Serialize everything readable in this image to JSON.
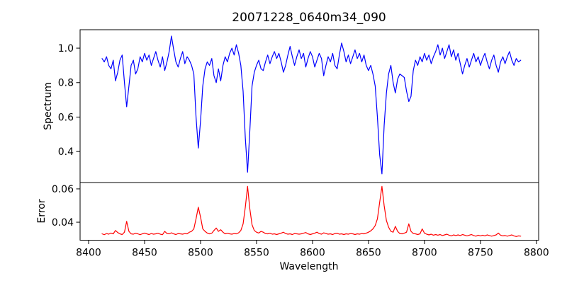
{
  "title": "20071228_0640m34_090",
  "figure": {
    "background": "#ffffff",
    "axis_color": "#000000"
  },
  "chart_data": [
    {
      "type": "line",
      "name": "spectrum-panel",
      "title": "20071228_0640m34_090",
      "xlabel": "",
      "ylabel": "Spectrum",
      "xlim": [
        8392.4,
        8802.0
      ],
      "ylim": [
        0.22,
        1.107
      ],
      "yticks": [
        0.4,
        0.6,
        0.8,
        1.0
      ],
      "yticklabels": [
        "0.4",
        "0.6",
        "0.8",
        "1.0"
      ],
      "grid": false,
      "legend": "none",
      "series": [
        {
          "name": "spectrum",
          "color": "#0000ff",
          "x_start": 8412,
          "x_step": 2,
          "values": [
            0.94,
            0.92,
            0.95,
            0.9,
            0.88,
            0.93,
            0.81,
            0.86,
            0.93,
            0.96,
            0.8,
            0.66,
            0.78,
            0.9,
            0.93,
            0.85,
            0.88,
            0.95,
            0.92,
            0.97,
            0.93,
            0.96,
            0.9,
            0.94,
            0.98,
            0.93,
            0.89,
            0.95,
            0.87,
            0.92,
            0.98,
            1.07,
            0.99,
            0.92,
            0.89,
            0.94,
            0.98,
            0.91,
            0.95,
            0.93,
            0.9,
            0.85,
            0.6,
            0.42,
            0.58,
            0.78,
            0.88,
            0.92,
            0.9,
            0.94,
            0.84,
            0.8,
            0.88,
            0.81,
            0.9,
            0.95,
            0.92,
            0.97,
            1.0,
            0.96,
            1.02,
            0.97,
            0.9,
            0.75,
            0.48,
            0.28,
            0.52,
            0.78,
            0.86,
            0.9,
            0.93,
            0.88,
            0.87,
            0.92,
            0.96,
            0.91,
            0.95,
            0.98,
            0.94,
            0.97,
            0.92,
            0.86,
            0.9,
            0.96,
            1.01,
            0.95,
            0.9,
            0.95,
            0.99,
            0.94,
            0.97,
            0.89,
            0.94,
            0.98,
            0.95,
            0.89,
            0.93,
            0.97,
            0.94,
            0.84,
            0.9,
            0.95,
            0.92,
            0.97,
            0.9,
            0.88,
            0.96,
            1.03,
            0.98,
            0.92,
            0.96,
            0.91,
            0.95,
            0.99,
            0.94,
            0.97,
            0.92,
            0.96,
            0.9,
            0.87,
            0.9,
            0.85,
            0.78,
            0.6,
            0.38,
            0.27,
            0.55,
            0.74,
            0.85,
            0.9,
            0.8,
            0.74,
            0.82,
            0.85,
            0.84,
            0.83,
            0.75,
            0.69,
            0.72,
            0.87,
            0.93,
            0.9,
            0.95,
            0.92,
            0.97,
            0.93,
            0.96,
            0.91,
            0.95,
            0.98,
            1.02,
            0.96,
            1.0,
            0.94,
            0.98,
            1.02,
            0.95,
            0.99,
            0.93,
            0.97,
            0.91,
            0.85,
            0.9,
            0.94,
            0.89,
            0.93,
            0.97,
            0.92,
            0.95,
            0.9,
            0.94,
            0.97,
            0.92,
            0.88,
            0.93,
            0.96,
            0.9,
            0.86,
            0.92,
            0.95,
            0.91,
            0.95,
            0.98,
            0.93,
            0.9,
            0.94,
            0.92,
            0.93
          ]
        }
      ]
    },
    {
      "type": "line",
      "name": "error-panel",
      "xlabel": "Wavelength",
      "ylabel": "Error",
      "xlim": [
        8392.4,
        8802.0
      ],
      "ylim": [
        0.0292,
        0.0638
      ],
      "yticks": [
        0.04,
        0.06
      ],
      "yticklabels": [
        "0.04",
        "0.06"
      ],
      "xticks": [
        8400,
        8450,
        8500,
        8550,
        8600,
        8650,
        8700,
        8750,
        8800
      ],
      "xticklabels": [
        "8400",
        "8450",
        "8500",
        "8550",
        "8600",
        "8650",
        "8700",
        "8750",
        "8800"
      ],
      "grid": false,
      "legend": "none",
      "series": [
        {
          "name": "error",
          "color": "#ff0000",
          "x_start": 8412,
          "x_step": 2,
          "values": [
            0.033,
            0.0325,
            0.0332,
            0.0328,
            0.0335,
            0.033,
            0.035,
            0.0338,
            0.033,
            0.0326,
            0.034,
            0.0405,
            0.0345,
            0.033,
            0.0328,
            0.0334,
            0.033,
            0.0325,
            0.033,
            0.0335,
            0.033,
            0.0326,
            0.0332,
            0.0328,
            0.033,
            0.0334,
            0.0328,
            0.0325,
            0.0345,
            0.0332,
            0.033,
            0.0336,
            0.033,
            0.0326,
            0.0332,
            0.033,
            0.0328,
            0.0332,
            0.033,
            0.034,
            0.0345,
            0.036,
            0.042,
            0.049,
            0.043,
            0.036,
            0.0345,
            0.0335,
            0.033,
            0.0334,
            0.035,
            0.0365,
            0.0345,
            0.0355,
            0.034,
            0.033,
            0.0334,
            0.033,
            0.0328,
            0.0332,
            0.033,
            0.0336,
            0.035,
            0.039,
            0.049,
            0.0615,
            0.048,
            0.0385,
            0.035,
            0.034,
            0.0335,
            0.0345,
            0.034,
            0.0332,
            0.033,
            0.0334,
            0.0328,
            0.033,
            0.0326,
            0.033,
            0.0334,
            0.034,
            0.0332,
            0.0328,
            0.033,
            0.0326,
            0.0332,
            0.033,
            0.0328,
            0.033,
            0.0334,
            0.0338,
            0.033,
            0.0326,
            0.033,
            0.0334,
            0.034,
            0.0332,
            0.0328,
            0.0336,
            0.0332,
            0.0328,
            0.033,
            0.0326,
            0.0332,
            0.0334,
            0.0328,
            0.033,
            0.0326,
            0.033,
            0.0328,
            0.0332,
            0.033,
            0.0326,
            0.033,
            0.0328,
            0.0332,
            0.033,
            0.0334,
            0.034,
            0.0348,
            0.036,
            0.038,
            0.042,
            0.052,
            0.0615,
            0.05,
            0.041,
            0.037,
            0.0345,
            0.034,
            0.0375,
            0.0345,
            0.0332,
            0.033,
            0.0334,
            0.034,
            0.039,
            0.0345,
            0.0332,
            0.033,
            0.0326,
            0.033,
            0.036,
            0.0334,
            0.0328,
            0.0324,
            0.0328,
            0.0322,
            0.0326,
            0.0322,
            0.0326,
            0.032,
            0.0324,
            0.0328,
            0.0322,
            0.0318,
            0.0324,
            0.032,
            0.0324,
            0.032,
            0.0326,
            0.0322,
            0.0318,
            0.0322,
            0.0326,
            0.032,
            0.0316,
            0.0322,
            0.0318,
            0.0322,
            0.0318,
            0.0324,
            0.032,
            0.0316,
            0.032,
            0.0324,
            0.0335,
            0.0322,
            0.0318,
            0.032,
            0.0316,
            0.032,
            0.0324,
            0.0318,
            0.0314,
            0.0318,
            0.0316
          ]
        }
      ]
    }
  ]
}
